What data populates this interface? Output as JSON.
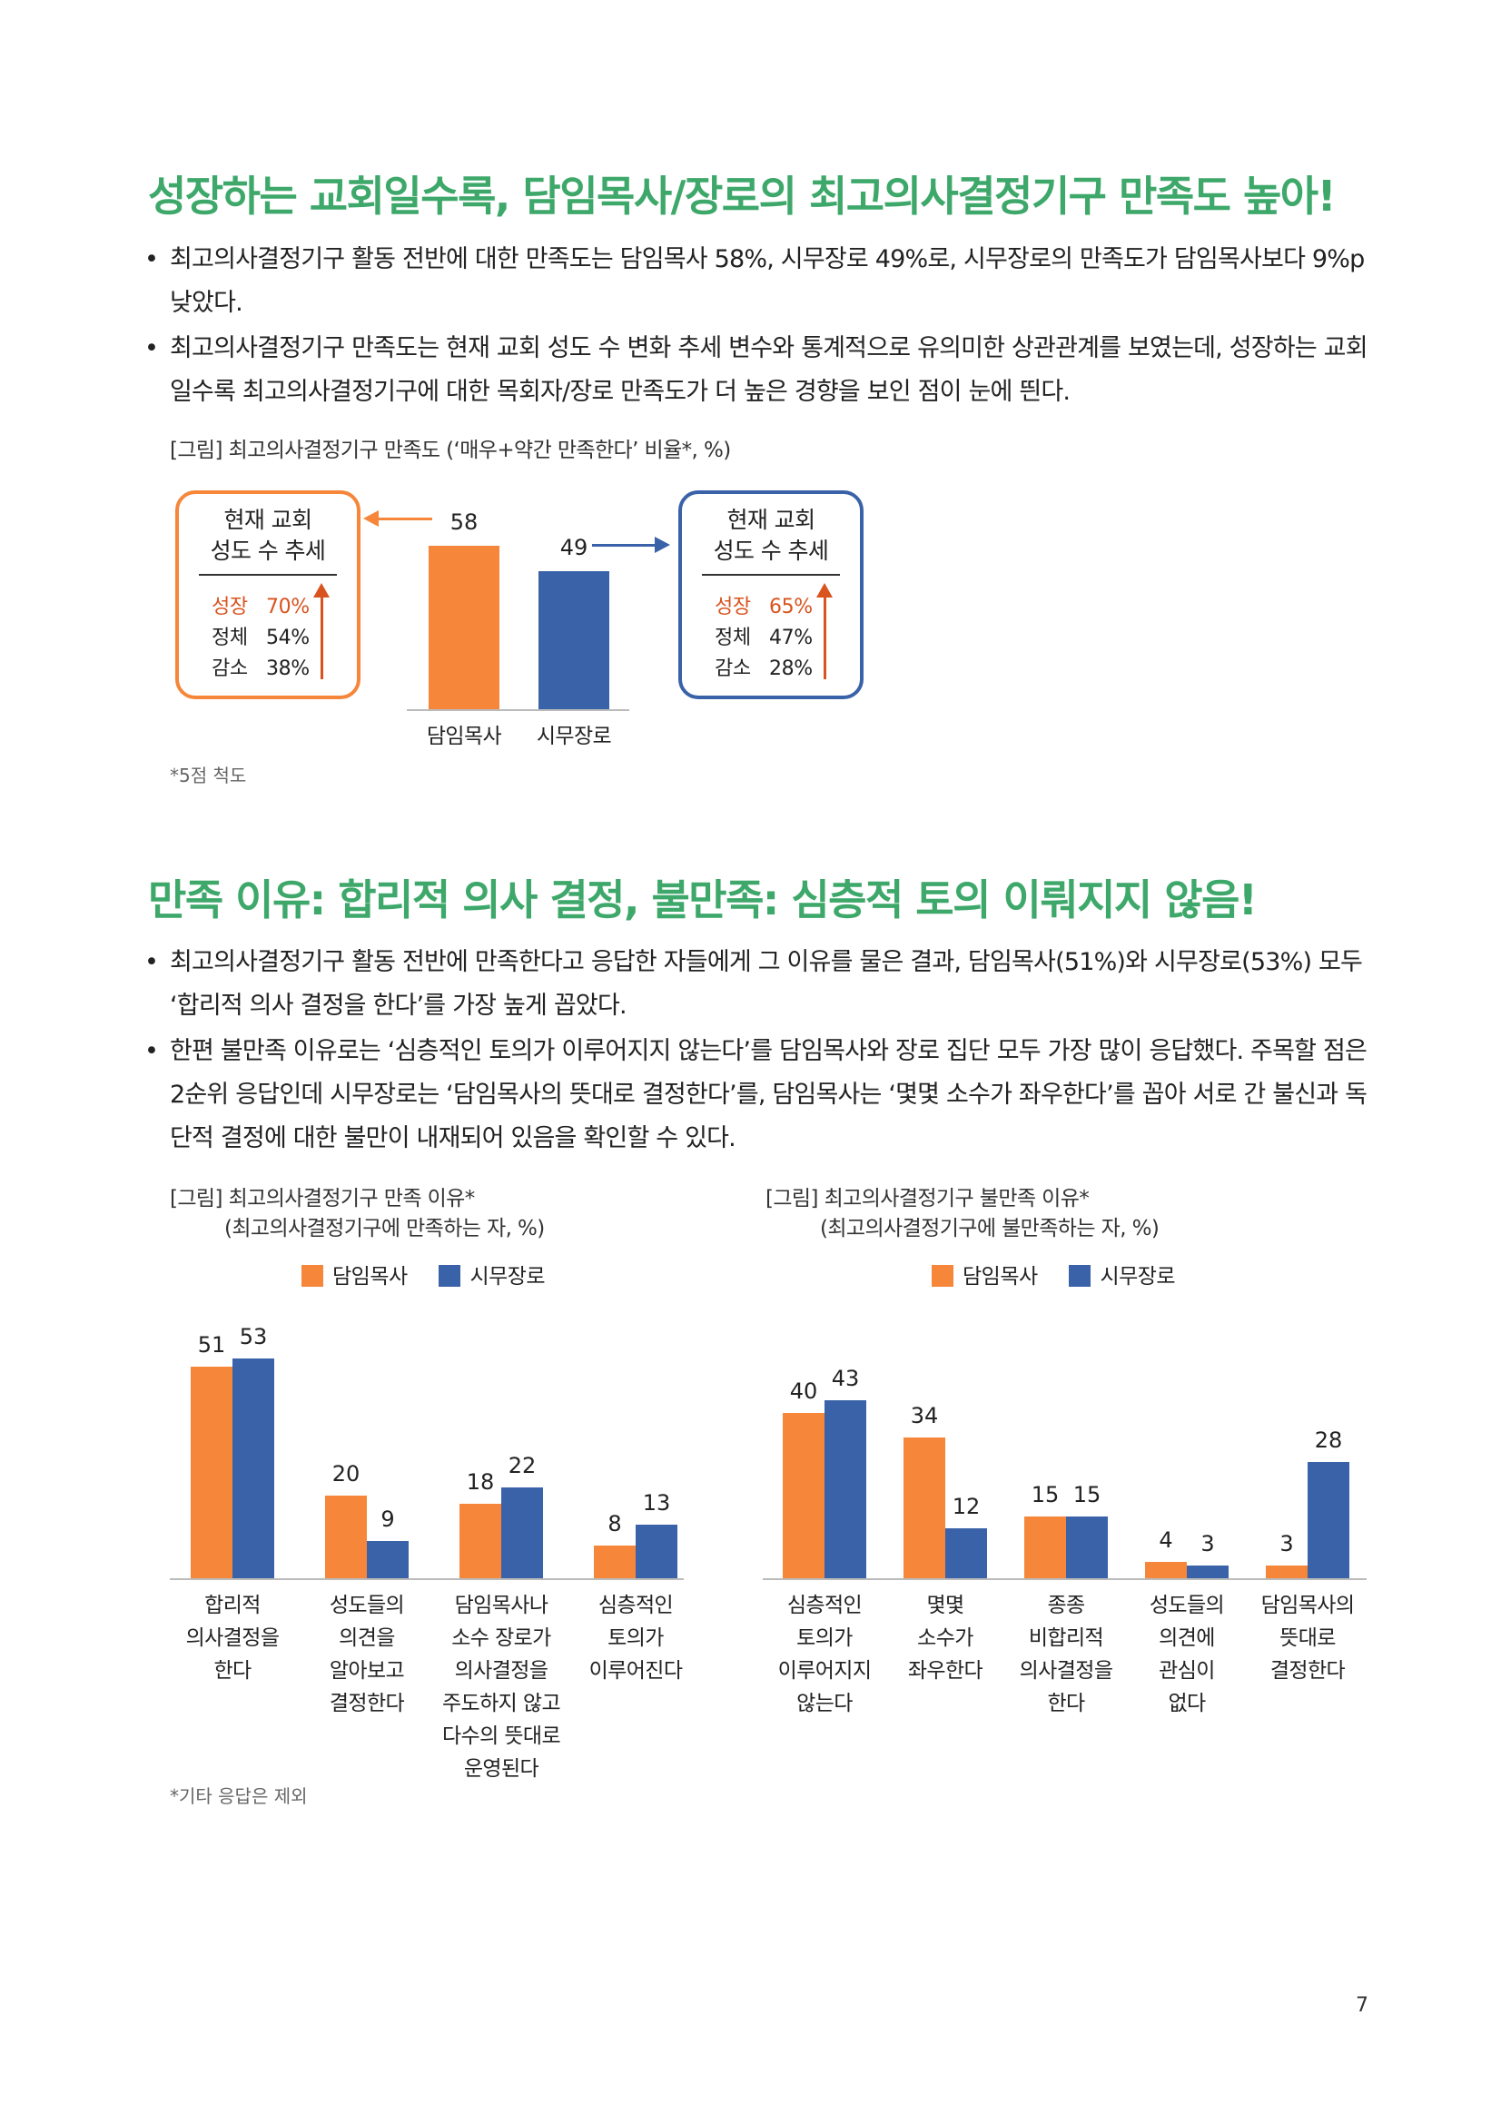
{
  "section1": {
    "heading": "성장하는 교회일수록, 담임목사/장로의 최고의사결정기구 만족도 높아!",
    "bullets": [
      "최고의사결정기구 활동 전반에 대한 만족도는 담임목사 58%, 시무장로 49%로, 시무장로의 만족도가 담임목사보다 9%p 낮았다.",
      "최고의사결정기구 만족도는 현재 교회 성도 수 변화 추세 변수와 통계적으로 유의미한 상관관계를 보였는데, 성장하는 교회일수록 최고의사결정기구에 대한 목회자/장로 만족도가 더 높은 경향을 보인 점이 눈에 띈다."
    ],
    "figure_caption": "[그림] 최고의사결정기구 만족도 (‘매우+약간 만족한다’ 비율*, %)",
    "note": "*5점 척도"
  },
  "chart_data": [
    {
      "type": "bar",
      "title": "[그림] 최고의사결정기구 만족도 (‘매우+약간 만족한다’ 비율*, %)",
      "categories": [
        "담임목사",
        "시무장로"
      ],
      "values": [
        58,
        49
      ],
      "colors": [
        "#f5863a",
        "#3a62a8"
      ],
      "ylim": [
        0,
        70
      ],
      "grid": false,
      "annotations": [
        {
          "title_lines": [
            "현재 교회",
            "성도 수 추세"
          ],
          "applies_to": "담임목사",
          "rows": [
            {
              "label": "성장",
              "value": "70%"
            },
            {
              "label": "정체",
              "value": "54%"
            },
            {
              "label": "감소",
              "value": "38%"
            }
          ]
        },
        {
          "title_lines": [
            "현재 교회",
            "성도 수 추세"
          ],
          "applies_to": "시무장로",
          "rows": [
            {
              "label": "성장",
              "value": "65%"
            },
            {
              "label": "정체",
              "value": "47%"
            },
            {
              "label": "감소",
              "value": "28%"
            }
          ]
        }
      ]
    },
    {
      "type": "bar",
      "title": "[그림] 최고의사결정기구 만족 이유*",
      "subtitle": "(최고의사결정기구에 만족하는 자, %)",
      "categories": [
        [
          "합리적",
          "의사결정을",
          "한다"
        ],
        [
          "성도들의",
          "의견을",
          "알아보고",
          "결정한다"
        ],
        [
          "담임목사나",
          "소수 장로가",
          "의사결정을",
          "주도하지 않고",
          "다수의 뜻대로",
          "운영된다"
        ],
        [
          "심층적인",
          "토의가",
          "이루어진다"
        ]
      ],
      "series": [
        {
          "name": "담임목사",
          "color": "#f5863a",
          "values": [
            51,
            20,
            18,
            8
          ]
        },
        {
          "name": "시무장로",
          "color": "#3a62a8",
          "values": [
            53,
            9,
            22,
            13
          ]
        }
      ],
      "ylim": [
        0,
        60
      ],
      "legend": "top-center",
      "grid": false
    },
    {
      "type": "bar",
      "title": "[그림] 최고의사결정기구 불만족 이유*",
      "subtitle": "(최고의사결정기구에 불만족하는 자, %)",
      "categories": [
        [
          "심층적인",
          "토의가",
          "이루어지지",
          "않는다"
        ],
        [
          "몇몇",
          "소수가",
          "좌우한다"
        ],
        [
          "종종",
          "비합리적",
          "의사결정을",
          "한다"
        ],
        [
          "성도들의",
          "의견에",
          "관심이",
          "없다"
        ],
        [
          "담임목사의",
          "뜻대로",
          "결정한다"
        ]
      ],
      "series": [
        {
          "name": "담임목사",
          "color": "#f5863a",
          "values": [
            40,
            34,
            15,
            4,
            3
          ]
        },
        {
          "name": "시무장로",
          "color": "#3a62a8",
          "values": [
            43,
            12,
            15,
            3,
            28
          ]
        }
      ],
      "ylim": [
        0,
        60
      ],
      "legend": "top-center",
      "grid": false
    }
  ],
  "section2": {
    "heading": "만족 이유: 합리적 의사 결정, 불만족: 심층적 토의 이뤄지지 않음!",
    "bullets": [
      "최고의사결정기구 활동 전반에 만족한다고 응답한 자들에게 그 이유를 물은 결과, 담임목사(51%)와 시무장로(53%) 모두 ‘합리적 의사 결정을 한다’를 가장 높게 꼽았다.",
      "한편 불만족 이유로는 ‘심층적인 토의가 이루어지지 않는다’를 담임목사와 장로 집단 모두 가장 많이 응답했다. 주목할 점은 2순위 응답인데 시무장로는 ‘담임목사의 뜻대로 결정한다’를, 담임목사는 ‘몇몇 소수가 좌우한다’를 꼽아 서로 간 불신과 독단적 결정에 대한 불만이 내재되어 있음을 확인할 수 있다."
    ],
    "note": "*기타 응답은 제외"
  },
  "bullet_glyph": "•",
  "page_number": "7"
}
